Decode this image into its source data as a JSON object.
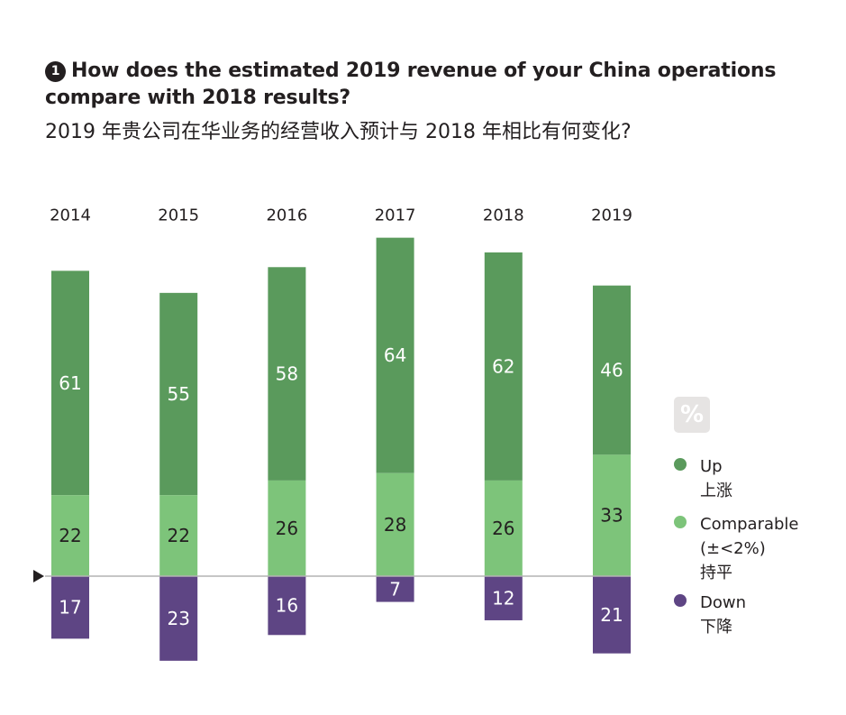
{
  "title": {
    "number": "1",
    "en": "How does the estimated 2019 revenue of your China operations compare with 2018 results?",
    "zh": "2019 年贵公司在华业务的经营收入预计与 2018 年相比有何变化?"
  },
  "legend": {
    "unit": "%",
    "items": [
      {
        "label_en": "Up",
        "label_sub": "",
        "label_zh": "上涨",
        "color": "#5a9a5c"
      },
      {
        "label_en": "Comparable",
        "label_sub": "(±<2%)",
        "label_zh": "持平",
        "color": "#7dc47a"
      },
      {
        "label_en": "Down",
        "label_sub": "",
        "label_zh": "下降",
        "color": "#5e4584"
      }
    ]
  },
  "chart_data": {
    "type": "bar",
    "stacked": true,
    "categories": [
      "2014",
      "2015",
      "2016",
      "2017",
      "2018",
      "2019"
    ],
    "series": [
      {
        "name": "Up 上涨",
        "color": "#5a9a5c",
        "values": [
          61,
          55,
          58,
          64,
          62,
          46
        ]
      },
      {
        "name": "Comparable (±<2%) 持平",
        "color": "#7dc47a",
        "values": [
          22,
          22,
          26,
          28,
          26,
          33
        ]
      },
      {
        "name": "Down 下降",
        "color": "#5e4584",
        "values": [
          17,
          23,
          16,
          7,
          12,
          21
        ]
      }
    ],
    "baseline": "Down values drawn below the zero line",
    "grid": false,
    "legend_position": "right"
  }
}
